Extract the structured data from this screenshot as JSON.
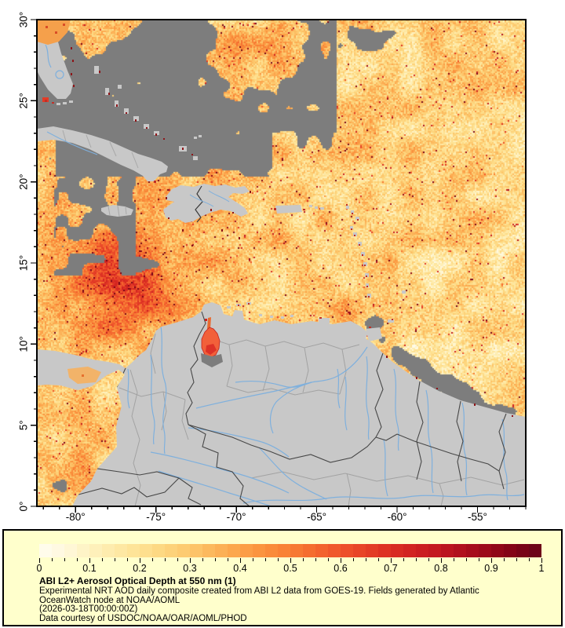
{
  "map": {
    "geo": {
      "lon_min": -82.4,
      "lon_max": -52.0,
      "lat_min": 0,
      "lat_max": 30
    },
    "x_axis": {
      "labels": [
        "-80°",
        "-75°",
        "-70°",
        "-65°",
        "-60°",
        "-55°"
      ],
      "values": [
        -80,
        -75,
        -70,
        -65,
        -60,
        -55
      ],
      "minor_step_deg": 1
    },
    "y_axis": {
      "labels": [
        "30°",
        "25°",
        "20°",
        "15°",
        "10°",
        "5°",
        "0°"
      ],
      "values": [
        30,
        25,
        20,
        15,
        10,
        5,
        0
      ],
      "minor_step_deg": 1
    },
    "colors": {
      "land": "#c8c8c8",
      "missing_data_cloud": "#7d7d7d",
      "river": "#7fb0dd",
      "country_border": "#474747",
      "state_line": "#a2a2a2",
      "frame": "#000000",
      "background": "#ffffff"
    }
  },
  "colorbar": {
    "min": 0,
    "max": 1,
    "tick_labels": [
      "0",
      "0.1",
      "0.2",
      "0.3",
      "0.4",
      "0.5",
      "0.6",
      "0.7",
      "0.8",
      "0.9",
      "1"
    ],
    "tick_values": [
      0,
      0.1,
      0.2,
      0.3,
      0.4,
      0.5,
      0.6,
      0.7,
      0.8,
      0.9,
      1
    ],
    "minor_tick_step": 0.025,
    "bands": 40,
    "stops": [
      {
        "v": 0.0,
        "c": "#fffdf0"
      },
      {
        "v": 0.05,
        "c": "#fff8dd"
      },
      {
        "v": 0.1,
        "c": "#fef2c0"
      },
      {
        "v": 0.15,
        "c": "#feeaa8"
      },
      {
        "v": 0.2,
        "c": "#fee293"
      },
      {
        "v": 0.25,
        "c": "#fdd67e"
      },
      {
        "v": 0.3,
        "c": "#fdc76c"
      },
      {
        "v": 0.35,
        "c": "#fcb55a"
      },
      {
        "v": 0.4,
        "c": "#fca249"
      },
      {
        "v": 0.45,
        "c": "#fa8f3c"
      },
      {
        "v": 0.5,
        "c": "#f87d34"
      },
      {
        "v": 0.55,
        "c": "#f4682f"
      },
      {
        "v": 0.6,
        "c": "#ef532b"
      },
      {
        "v": 0.65,
        "c": "#e64027"
      },
      {
        "v": 0.7,
        "c": "#db2e23"
      },
      {
        "v": 0.75,
        "c": "#cf2121"
      },
      {
        "v": 0.8,
        "c": "#c0161f"
      },
      {
        "v": 0.85,
        "c": "#ac0e1d"
      },
      {
        "v": 0.9,
        "c": "#960819"
      },
      {
        "v": 0.95,
        "c": "#7e0316"
      },
      {
        "v": 1.0,
        "c": "#680418"
      }
    ]
  },
  "legend": {
    "background": "#ffffcc",
    "title": "ABI L2+ Aerosol Optical Depth at 550 nm (1)",
    "line1": "Experimental NRT AOD daily composite created from ABI L2 data from GOES-19. Fields generated by Atlantic",
    "line2": "OceanWatch node at NOAA/AOML",
    "line3": "(2026-03-18T00:00:00Z)",
    "line4": "Data courtesy of USDOC/NOAA/OAR/AOML/PHOD"
  },
  "chart_data": {
    "type": "heatmap",
    "title": "ABI L2+ Aerosol Optical Depth at 550 nm (1)",
    "value_range": [
      0,
      1
    ],
    "lon_range": [
      -82.4,
      -52.0
    ],
    "lat_range": [
      0,
      30
    ],
    "legend_position": "bottom",
    "notes": "Gridded AOD raster over ocean; gray = no retrieval/cloud, light gray = land"
  }
}
